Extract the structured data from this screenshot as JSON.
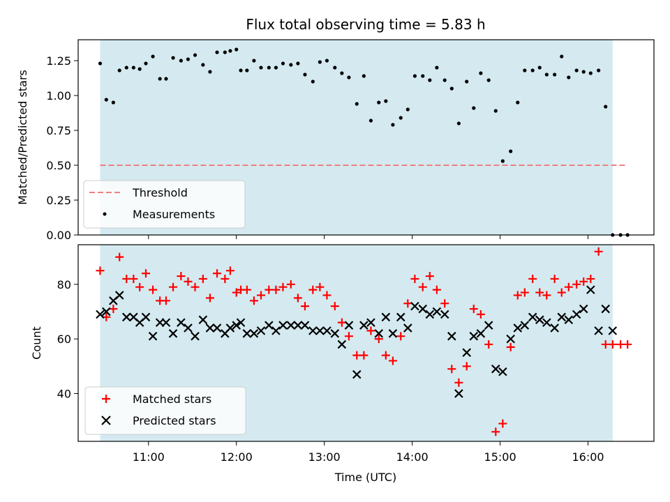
{
  "chart_data": {
    "type": "scatter",
    "title": "Flux total observing time = 5.83 h",
    "xlabel": "Time (UTC)",
    "x_tick_labels": [
      "11:00",
      "12:00",
      "13:00",
      "14:00",
      "15:00",
      "16:00"
    ],
    "x_ticks_hours": [
      11,
      12,
      13,
      14,
      15,
      16
    ],
    "xlim_hours": [
      10.2,
      16.75
    ],
    "shaded_span_hours": [
      10.45,
      16.28
    ],
    "colors": {
      "shade": "#d4eaf0",
      "threshold": "#f08080",
      "matched": "#ff0000",
      "predicted": "#000000",
      "measurement": "#000000"
    },
    "top": {
      "ylabel": "Matched/Predicted stars",
      "ylim": [
        0,
        1.4
      ],
      "y_ticks": [
        0.0,
        0.25,
        0.5,
        0.75,
        1.0,
        1.25
      ],
      "y_tick_labels": [
        "0.00",
        "0.25",
        "0.50",
        "0.75",
        "1.00",
        "1.25"
      ],
      "threshold": {
        "value": 0.5,
        "x_range": [
          10.45,
          16.45
        ],
        "label": "Threshold"
      },
      "measurements_label": "Measurements",
      "x": [
        10.45,
        10.52,
        10.6,
        10.67,
        10.75,
        10.83,
        10.9,
        10.97,
        11.05,
        11.13,
        11.2,
        11.28,
        11.37,
        11.45,
        11.53,
        11.62,
        11.7,
        11.78,
        11.87,
        11.93,
        12.0,
        12.05,
        12.12,
        12.2,
        12.28,
        12.37,
        12.45,
        12.53,
        12.62,
        12.7,
        12.78,
        12.87,
        12.95,
        13.03,
        13.12,
        13.2,
        13.28,
        13.37,
        13.45,
        13.53,
        13.62,
        13.7,
        13.78,
        13.87,
        13.95,
        14.03,
        14.12,
        14.2,
        14.28,
        14.37,
        14.45,
        14.53,
        14.62,
        14.7,
        14.78,
        14.87,
        14.95,
        15.03,
        15.12,
        15.2,
        15.28,
        15.37,
        15.45,
        15.53,
        15.62,
        15.7,
        15.78,
        15.87,
        15.95,
        16.03,
        16.12,
        16.2,
        16.28,
        16.37,
        16.45
      ],
      "y": [
        1.23,
        0.97,
        0.95,
        1.18,
        1.2,
        1.2,
        1.19,
        1.23,
        1.28,
        1.12,
        1.12,
        1.27,
        1.25,
        1.26,
        1.29,
        1.22,
        1.17,
        1.31,
        1.31,
        1.32,
        1.33,
        1.18,
        1.18,
        1.25,
        1.2,
        1.2,
        1.2,
        1.23,
        1.22,
        1.23,
        1.15,
        1.1,
        1.24,
        1.25,
        1.2,
        1.16,
        1.13,
        0.94,
        1.14,
        0.82,
        0.95,
        0.96,
        0.79,
        0.84,
        0.9,
        1.14,
        1.14,
        1.11,
        1.2,
        1.11,
        1.05,
        0.8,
        1.1,
        0.91,
        1.16,
        1.11,
        0.89,
        0.53,
        0.6,
        0.95,
        1.18,
        1.18,
        1.2,
        1.15,
        1.15,
        1.28,
        1.13,
        1.18,
        1.17,
        1.16,
        1.18,
        0.92,
        0.0,
        0.0,
        0.0
      ]
    },
    "bottom": {
      "ylabel": "Count",
      "ylim": [
        22.5,
        94.5
      ],
      "y_ticks": [
        40,
        60,
        80
      ],
      "y_tick_labels": [
        "40",
        "60",
        "80"
      ],
      "series": [
        {
          "name": "Matched stars",
          "marker": "plus",
          "x": [
            10.45,
            10.52,
            10.6,
            10.67,
            10.75,
            10.83,
            10.9,
            10.97,
            11.05,
            11.13,
            11.2,
            11.28,
            11.37,
            11.45,
            11.53,
            11.62,
            11.7,
            11.78,
            11.87,
            11.93,
            12.0,
            12.05,
            12.12,
            12.2,
            12.28,
            12.37,
            12.45,
            12.53,
            12.62,
            12.7,
            12.78,
            12.87,
            12.95,
            13.03,
            13.12,
            13.2,
            13.28,
            13.37,
            13.45,
            13.53,
            13.62,
            13.7,
            13.78,
            13.87,
            13.95,
            14.03,
            14.12,
            14.2,
            14.28,
            14.37,
            14.45,
            14.53,
            14.62,
            14.7,
            14.78,
            14.87,
            14.95,
            15.03,
            15.12,
            15.2,
            15.28,
            15.37,
            15.45,
            15.53,
            15.62,
            15.7,
            15.78,
            15.87,
            15.95,
            16.03,
            16.12,
            16.2,
            16.28,
            16.37,
            16.45
          ],
          "values": [
            85,
            68,
            71,
            90,
            82,
            82,
            79,
            84,
            78,
            74,
            74,
            79,
            83,
            81,
            79,
            82,
            75,
            84,
            82,
            85,
            77,
            78,
            78,
            74,
            76,
            78,
            78,
            79,
            80,
            75,
            72,
            78,
            79,
            76,
            72,
            66,
            61,
            54,
            54,
            63,
            60,
            54,
            52,
            61,
            73,
            82,
            79,
            83,
            78,
            73,
            49,
            44,
            50,
            71,
            69,
            58,
            26,
            29,
            57,
            76,
            77,
            82,
            77,
            76,
            82,
            77,
            79,
            80,
            81,
            82,
            92,
            58,
            58,
            58,
            58
          ],
          "note": "last three markers at 58 located at 16.28, 16.37, 16.45"
        },
        {
          "name": "Predicted stars",
          "marker": "x",
          "x": [
            10.45,
            10.52,
            10.6,
            10.67,
            10.75,
            10.83,
            10.9,
            10.97,
            11.05,
            11.13,
            11.2,
            11.28,
            11.37,
            11.45,
            11.53,
            11.62,
            11.7,
            11.78,
            11.87,
            11.93,
            12.0,
            12.05,
            12.12,
            12.2,
            12.28,
            12.37,
            12.45,
            12.53,
            12.62,
            12.7,
            12.78,
            12.87,
            12.95,
            13.03,
            13.12,
            13.2,
            13.28,
            13.37,
            13.45,
            13.53,
            13.62,
            13.7,
            13.78,
            13.87,
            13.95,
            14.03,
            14.12,
            14.2,
            14.28,
            14.37,
            14.45,
            14.53,
            14.62,
            14.7,
            14.78,
            14.87,
            14.95,
            15.03,
            15.12,
            15.2,
            15.28,
            15.37,
            15.45,
            15.53,
            15.62,
            15.7,
            15.78,
            15.87,
            15.95,
            16.03,
            16.12,
            16.2,
            16.28
          ],
          "values": [
            69,
            70,
            74,
            76,
            68,
            68,
            66,
            68,
            61,
            66,
            66,
            62,
            66,
            64,
            61,
            67,
            64,
            64,
            62,
            64,
            65,
            66,
            62,
            62,
            63,
            65,
            63,
            65,
            65,
            65,
            65,
            63,
            63,
            63,
            62,
            58,
            65,
            47,
            65,
            66,
            62,
            68,
            62,
            68,
            64,
            72,
            71,
            69,
            70,
            69,
            61,
            40,
            55,
            61,
            62,
            65,
            49,
            48,
            60,
            64,
            65,
            68,
            67,
            66,
            64,
            68,
            67,
            69,
            71,
            78,
            63,
            71,
            63
          ],
          "note": "values taken in order along x"
        }
      ]
    }
  }
}
